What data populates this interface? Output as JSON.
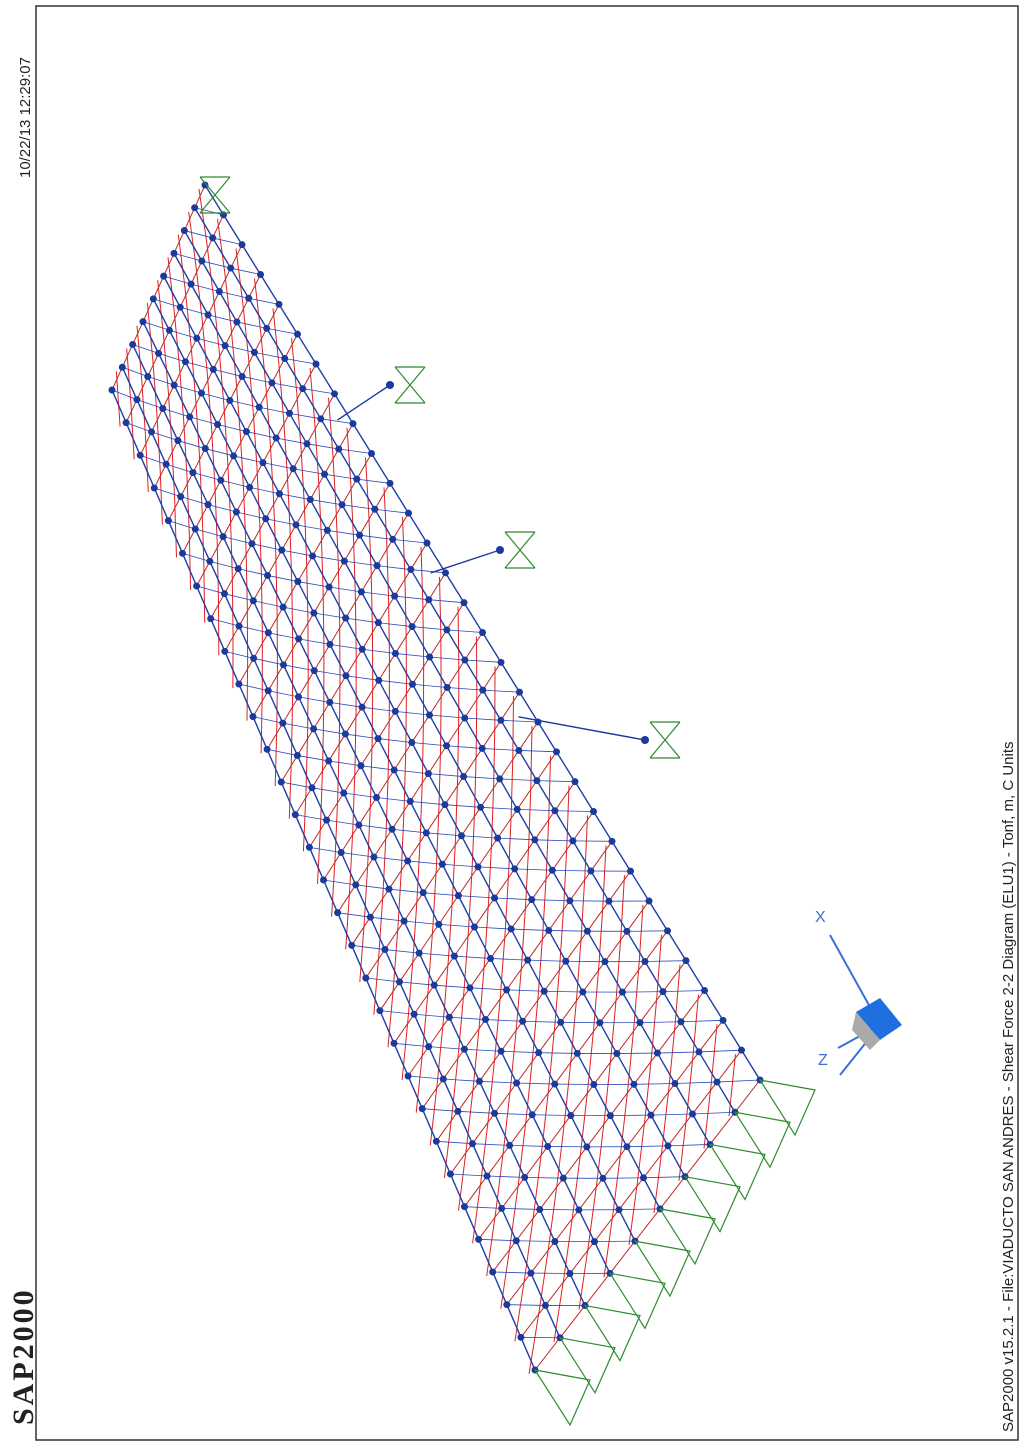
{
  "header": {
    "brand": "SAP2000",
    "timestamp": "10/22/13 12:29:07"
  },
  "footer": {
    "caption": "SAP2000 v15.2.1 - File:VIADUCTO SAN ANDRES -   Shear Force 2-2 Diagram   (ELU1) - Tonf, m, C Units"
  },
  "triad": {
    "x_label": "X",
    "z_label": "Z"
  }
}
